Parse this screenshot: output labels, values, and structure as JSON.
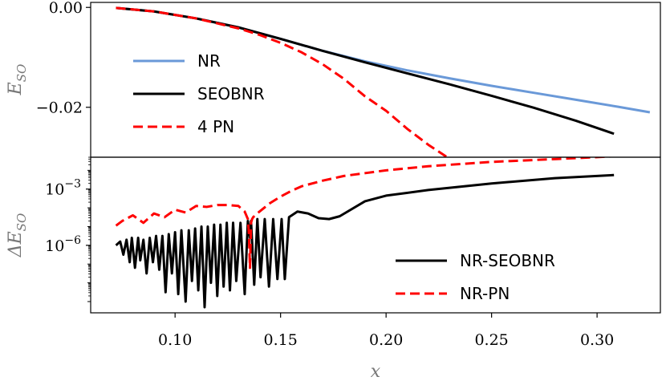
{
  "chart_data": [
    {
      "type": "line",
      "ylabel": "E_SO",
      "ylim": [
        -0.03,
        0.001
      ],
      "xlim": [
        0.06,
        0.33
      ],
      "y_ticks": [
        {
          "value": 0.0,
          "label": "0.00"
        },
        {
          "value": -0.02,
          "label": "−0.02"
        }
      ],
      "legend": {
        "placement": "center-left",
        "entries": [
          "NR",
          "SEOBNR",
          "4 PN"
        ]
      },
      "series": [
        {
          "name": "NR",
          "color": "#6a99d8",
          "dash": "solid",
          "x": [
            0.072,
            0.09,
            0.11,
            0.13,
            0.15,
            0.17,
            0.19,
            0.21,
            0.23,
            0.25,
            0.27,
            0.29,
            0.31,
            0.325
          ],
          "y": [
            -0.0001,
            -0.0008,
            -0.0022,
            -0.004,
            -0.0063,
            -0.0087,
            -0.0108,
            -0.0126,
            -0.0142,
            -0.0157,
            -0.0171,
            -0.0185,
            -0.0199,
            -0.021
          ]
        },
        {
          "name": "SEOBNR",
          "color": "#000000",
          "dash": "solid",
          "x": [
            0.072,
            0.09,
            0.11,
            0.13,
            0.15,
            0.17,
            0.19,
            0.21,
            0.23,
            0.25,
            0.27,
            0.29,
            0.308
          ],
          "y": [
            -0.0001,
            -0.0008,
            -0.0022,
            -0.004,
            -0.0063,
            -0.0087,
            -0.011,
            -0.0132,
            -0.0154,
            -0.0177,
            -0.0201,
            -0.0227,
            -0.0253
          ]
        },
        {
          "name": "4 PN",
          "color": "#ff0000",
          "dash": "dashed",
          "x": [
            0.072,
            0.09,
            0.11,
            0.13,
            0.14,
            0.15,
            0.16,
            0.17,
            0.18,
            0.19,
            0.2,
            0.21,
            0.22,
            0.23
          ],
          "y": [
            -0.0001,
            -0.0008,
            -0.0022,
            -0.0042,
            -0.0055,
            -0.0071,
            -0.009,
            -0.0114,
            -0.0143,
            -0.0178,
            -0.0207,
            -0.0243,
            -0.0275,
            -0.0303
          ]
        }
      ]
    },
    {
      "type": "line",
      "xlabel": "x",
      "ylabel": "ΔE_SO",
      "yscale": "log",
      "ylim_log10": [
        -9.6,
        -1.3
      ],
      "xlim": [
        0.06,
        0.33
      ],
      "x_ticks": [
        {
          "value": 0.1,
          "label": "0.10"
        },
        {
          "value": 0.15,
          "label": "0.15"
        },
        {
          "value": 0.2,
          "label": "0.20"
        },
        {
          "value": 0.25,
          "label": "0.25"
        },
        {
          "value": 0.3,
          "label": "0.30"
        }
      ],
      "y_ticks": [
        {
          "log10": -3,
          "base": "10",
          "exp": "−3"
        },
        {
          "log10": -6,
          "base": "10",
          "exp": "−6"
        }
      ],
      "legend": {
        "placement": "lower-right",
        "entries": [
          "NR-SEOBNR",
          "NR-PN"
        ]
      },
      "series": [
        {
          "name": "NR-SEOBNR",
          "color": "#000000",
          "dash": "solid",
          "x": [
            0.072,
            0.074,
            0.0755,
            0.077,
            0.0785,
            0.0795,
            0.081,
            0.0825,
            0.0835,
            0.085,
            0.0865,
            0.088,
            0.0895,
            0.091,
            0.0925,
            0.094,
            0.0955,
            0.097,
            0.0985,
            0.1,
            0.1015,
            0.103,
            0.105,
            0.1065,
            0.108,
            0.1095,
            0.111,
            0.1125,
            0.114,
            0.1155,
            0.117,
            0.1185,
            0.12,
            0.1215,
            0.123,
            0.1245,
            0.126,
            0.1275,
            0.129,
            0.131,
            0.133,
            0.1345,
            0.1355,
            0.136,
            0.1375,
            0.139,
            0.1405,
            0.1425,
            0.1445,
            0.1465,
            0.1485,
            0.1505,
            0.152,
            0.154,
            0.158,
            0.163,
            0.168,
            0.173,
            0.178,
            0.19,
            0.2,
            0.22,
            0.25,
            0.28,
            0.308
          ],
          "logy": [
            -6.0,
            -5.8,
            -6.5,
            -5.7,
            -6.9,
            -5.6,
            -7.2,
            -5.6,
            -6.8,
            -5.7,
            -7.5,
            -5.6,
            -6.9,
            -5.5,
            -7.3,
            -5.5,
            -8.5,
            -5.4,
            -7.5,
            -5.3,
            -8.6,
            -5.2,
            -9.0,
            -5.2,
            -7.9,
            -5.1,
            -8.4,
            -5.0,
            -9.3,
            -5.0,
            -8.0,
            -4.9,
            -8.7,
            -4.9,
            -8.2,
            -4.8,
            -8.4,
            -4.8,
            -7.9,
            -4.8,
            -8.6,
            -4.7,
            -5.6,
            -4.7,
            -8.1,
            -4.6,
            -7.7,
            -4.6,
            -8.2,
            -4.6,
            -7.8,
            -4.6,
            -7.8,
            -4.5,
            -4.2,
            -4.3,
            -4.55,
            -4.6,
            -4.45,
            -3.65,
            -3.35,
            -3.05,
            -2.7,
            -2.42,
            -2.25
          ]
        },
        {
          "name": "NR-PN",
          "color": "#ff0000",
          "dash": "dashed",
          "x": [
            0.072,
            0.075,
            0.08,
            0.085,
            0.09,
            0.095,
            0.1,
            0.105,
            0.11,
            0.115,
            0.12,
            0.125,
            0.13,
            0.133,
            0.1345,
            0.135,
            0.1355,
            0.136,
            0.1365,
            0.137,
            0.14,
            0.145,
            0.15,
            0.155,
            0.16,
            0.17,
            0.18,
            0.2,
            0.22,
            0.25,
            0.28,
            0.308
          ],
          "logy": [
            -4.95,
            -4.7,
            -4.4,
            -4.8,
            -4.3,
            -4.5,
            -4.1,
            -4.25,
            -3.9,
            -3.95,
            -3.85,
            -3.85,
            -3.9,
            -4.2,
            -4.6,
            -5.4,
            -7.2,
            -4.8,
            -4.6,
            -4.5,
            -4.2,
            -3.75,
            -3.4,
            -3.1,
            -2.85,
            -2.55,
            -2.3,
            -2.0,
            -1.78,
            -1.55,
            -1.4,
            -1.25
          ]
        }
      ]
    }
  ]
}
